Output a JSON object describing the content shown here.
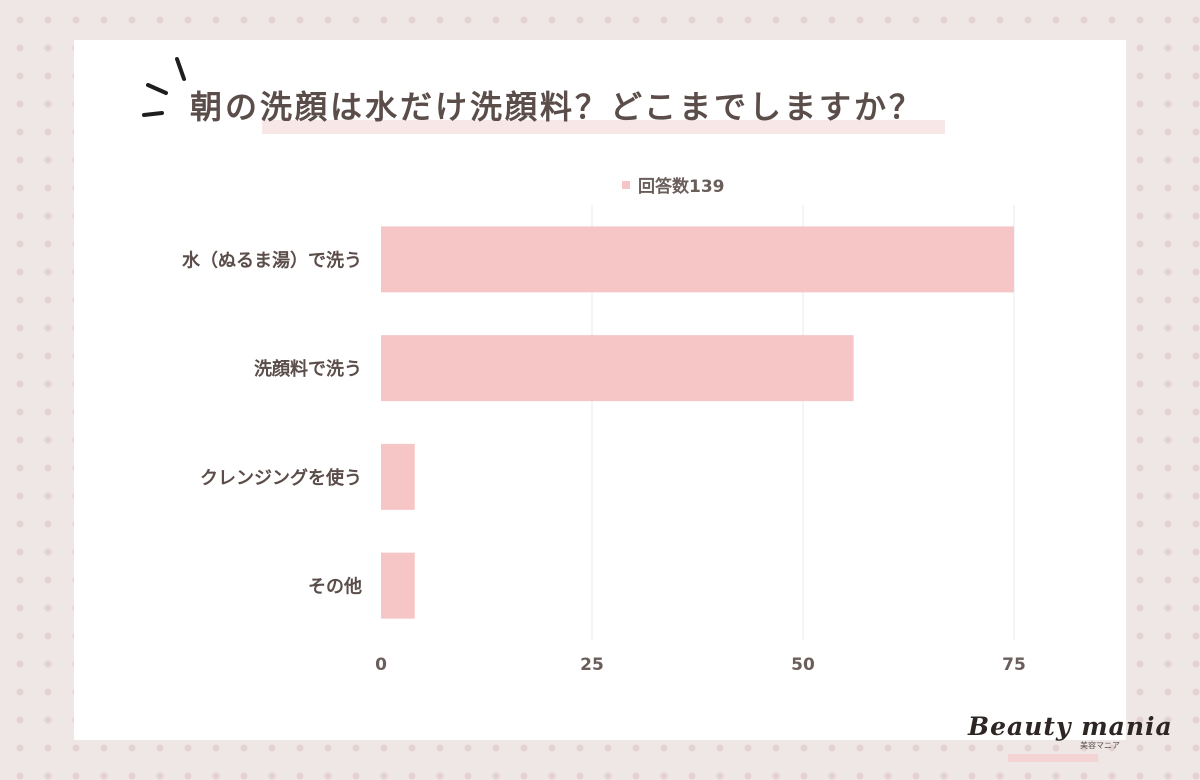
{
  "title": "朝の洗顔は水だけ洗顔料？どこまでしますか？",
  "legend_label": "回答数139",
  "colors": {
    "bar": "#f6c6c6",
    "text": "#5b4e4a",
    "grid": "#e8e8e8",
    "background_dots": "#e3d2d1"
  },
  "logo": {
    "text": "Beauty mania",
    "subtext": "美容マニア"
  },
  "chart_data": {
    "type": "bar",
    "orientation": "horizontal",
    "categories": [
      "水（ぬるま湯）で洗う",
      "洗顔料で洗う",
      "クレンジングを使う",
      "その他"
    ],
    "series": [
      {
        "name": "回答数139",
        "values": [
          75,
          56,
          4,
          4
        ]
      }
    ],
    "xlim": [
      0,
      75
    ],
    "xticks": [
      "0",
      "25",
      "50",
      "75"
    ],
    "grid": true,
    "legend": "top-center"
  }
}
